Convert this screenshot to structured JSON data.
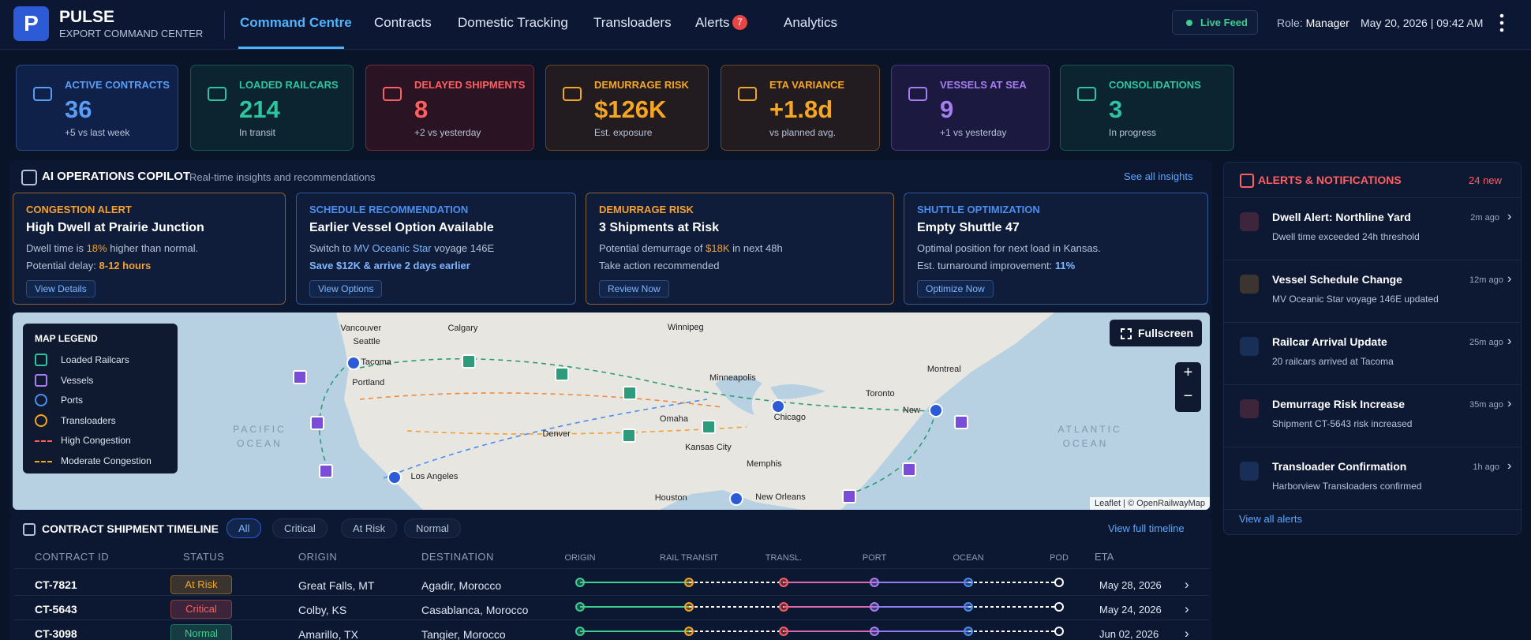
{
  "header": {
    "logo": "P",
    "brand": "PULSE",
    "subtitle": "EXPORT COMMAND CENTER",
    "nav": [
      "Command Centre",
      "Contracts",
      "Domestic Tracking",
      "Transloaders",
      "Alerts",
      "Analytics"
    ],
    "nav_active": 0,
    "alerts_badge": "7",
    "live": "Live Feed",
    "role_label": "Role:",
    "role": "Manager",
    "datetime": "May 20, 2026 | 09:42 AM"
  },
  "kpis": [
    {
      "label": "ACTIVE CONTRACTS",
      "value": "36",
      "note": "+5 vs last week",
      "color": "#5b9cf5"
    },
    {
      "label": "LOADED RAILCARS",
      "value": "214",
      "note": "In transit",
      "color": "#2ec4a0"
    },
    {
      "label": "DELAYED SHIPMENTS",
      "value": "8",
      "note": "+2 vs yesterday",
      "color": "#ff5f5f"
    },
    {
      "label": "DEMURRAGE RISK",
      "value": "$126K",
      "note": "Est. exposure",
      "color": "#f5a623"
    },
    {
      "label": "ETA VARIANCE",
      "value": "+1.8d",
      "note": "vs planned avg.",
      "color": "#f5a623"
    },
    {
      "label": "VESSELS AT SEA",
      "value": "9",
      "note": "+1 vs yesterday",
      "color": "#a77ef0"
    },
    {
      "label": "CONSOLIDATIONS",
      "value": "3",
      "note": "In progress",
      "color": "#2ec4a0"
    }
  ],
  "copilot": {
    "title": "AI OPERATIONS COPILOT",
    "subtitle": "Real-time insights and recommendations",
    "link": "See all insights",
    "cards": [
      {
        "tag": "CONGESTION ALERT",
        "title": "High Dwell at Prairie Junction",
        "color": "#f5a030",
        "lines": [
          [
            {
              "text": "Dwell time is "
            },
            {
              "text": "18%",
              "hl": true
            },
            {
              "text": " higher than normal."
            }
          ],
          [
            {
              "text": "Potential delay: "
            },
            {
              "text": "8-12 hours",
              "hl": true
            }
          ]
        ],
        "button": "View Details"
      },
      {
        "tag": "SCHEDULE RECOMMENDATION",
        "title": "Earlier Vessel Option Available",
        "color": "#4a8ef0",
        "lines": [
          [
            {
              "text": "Switch to "
            },
            {
              "text": "MV Oceanic Star",
              "hl": true
            },
            {
              "text": " voyage 146E"
            }
          ],
          [
            {
              "text": "Save $12K & arrive 2 days earlier",
              "hl": true
            }
          ]
        ],
        "button": "View Options"
      },
      {
        "tag": "DEMURRAGE RISK",
        "title": "3 Shipments at Risk",
        "color": "#f5a030",
        "lines": [
          [
            {
              "text": "Potential demurrage of "
            },
            {
              "text": "$18K",
              "hl": true
            },
            {
              "text": " in next 48h"
            }
          ],
          [
            {
              "text": "Take action recommended"
            }
          ]
        ],
        "button": "Review Now"
      },
      {
        "tag": "SHUTTLE OPTIMIZATION",
        "title": "Empty Shuttle 47",
        "color": "#4a8ef0",
        "lines": [
          [
            {
              "text": "Optimal position for next load in Kansas."
            }
          ],
          [
            {
              "text": "Est. turnaround improvement: "
            },
            {
              "text": "11%",
              "hl": true
            }
          ]
        ],
        "button": "Optimize Now"
      }
    ]
  },
  "map": {
    "legend_title": "MAP LEGEND",
    "legend": [
      "Loaded Railcars",
      "Vessels",
      "Ports",
      "Transloaders",
      "High Congestion",
      "Moderate Congestion"
    ],
    "cities": [
      "Vancouver",
      "Seattle",
      "Tacoma",
      "Portland",
      "Calgary",
      "Winnipeg",
      "Minneapolis",
      "Toronto",
      "Montreal",
      "Chicago",
      "Omaha",
      "Denver",
      "Kansas City",
      "Memphis",
      "Los Angeles",
      "Houston",
      "New Orleans",
      "New"
    ],
    "oceans": [
      "PACIFIC OCEAN",
      "ATLANTIC OCEAN"
    ],
    "fullscreen": "Fullscreen",
    "zoom_in": "+",
    "zoom_out": "−",
    "attribution": "Leaflet | © OpenRailwayMap"
  },
  "alerts": {
    "title": "ALERTS & NOTIFICATIONS",
    "count": "24 new",
    "items": [
      {
        "title": "Dwell Alert: Northline Yard",
        "time": "2m ago",
        "desc": "Dwell time exceeded 24h threshold",
        "color": "#ff5f5f"
      },
      {
        "title": "Vessel Schedule Change",
        "time": "12m ago",
        "desc": "MV Oceanic Star voyage 146E updated",
        "color": "#f5a623"
      },
      {
        "title": "Railcar Arrival Update",
        "time": "25m ago",
        "desc": "20 railcars arrived at Tacoma",
        "color": "#4a8ef0"
      },
      {
        "title": "Demurrage Risk Increase",
        "time": "35m ago",
        "desc": "Shipment CT-5643 risk increased",
        "color": "#ff5f5f"
      },
      {
        "title": "Transloader Confirmation",
        "time": "1h ago",
        "desc": "Harborview Transloaders confirmed",
        "color": "#4a8ef0"
      }
    ],
    "link": "View all alerts"
  },
  "timeline": {
    "title": "CONTRACT SHIPMENT TIMELINE",
    "filters": [
      "All",
      "Critical",
      "At Risk",
      "Normal"
    ],
    "filter_active": 0,
    "link": "View full timeline",
    "columns": [
      "CONTRACT ID",
      "STATUS",
      "ORIGIN",
      "DESTINATION"
    ],
    "stages": [
      "ORIGIN",
      "RAIL TRANSIT",
      "TRANSL.",
      "PORT",
      "OCEAN",
      "POD"
    ],
    "eta_label": "ETA",
    "rows": [
      {
        "id": "CT-7821",
        "status": "At Risk",
        "origin": "Great Falls, MT",
        "destination": "Agadir, Morocco",
        "eta": "May 28, 2026",
        "status_color": "#f5a623"
      },
      {
        "id": "CT-5643",
        "status": "Critical",
        "origin": "Colby, KS",
        "destination": "Casablanca, Morocco",
        "eta": "May 24, 2026",
        "status_color": "#ff5f5f"
      },
      {
        "id": "CT-3098",
        "status": "Normal",
        "origin": "Amarillo, TX",
        "destination": "Tangier, Morocco",
        "eta": "Jun 02, 2026",
        "status_color": "#3ecf8e"
      }
    ]
  }
}
